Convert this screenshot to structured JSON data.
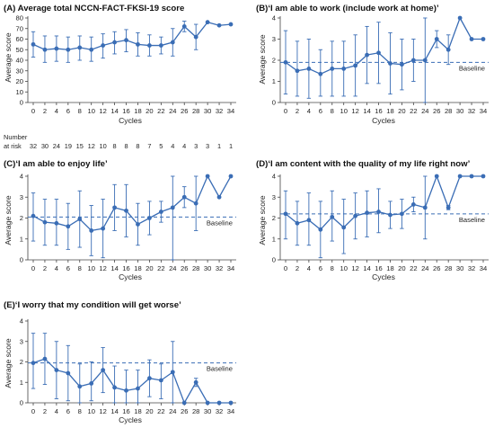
{
  "colors": {
    "series": "#3a6db5",
    "baseline": "#3a6db5",
    "axis": "#444444"
  },
  "risk_table": {
    "label_line1": "Number",
    "label_line2": "at risk",
    "values": [
      32,
      30,
      24,
      19,
      15,
      12,
      10,
      8,
      8,
      8,
      7,
      5,
      4,
      4,
      3,
      3,
      1,
      1
    ]
  },
  "chart_data": [
    {
      "type": "line",
      "title": "(A) Average total NCCN-FACT-FKSI-19 score",
      "xlabel": "Cycles",
      "ylabel": "Average score",
      "x": [
        0,
        2,
        4,
        6,
        8,
        10,
        12,
        14,
        16,
        18,
        20,
        22,
        24,
        26,
        28,
        30,
        32,
        34
      ],
      "xticks": [
        0,
        2,
        4,
        6,
        8,
        10,
        12,
        14,
        16,
        18,
        20,
        22,
        24,
        26,
        28,
        30,
        32,
        34
      ],
      "ylim": [
        0,
        80
      ],
      "yticks": [
        0,
        10,
        20,
        30,
        40,
        50,
        60,
        70,
        80
      ],
      "values": [
        55,
        50,
        51,
        50,
        52,
        50,
        54,
        57,
        59,
        55,
        54,
        54,
        57,
        72,
        62,
        76,
        73,
        74
      ],
      "err_low": [
        43,
        38,
        39,
        38,
        40,
        39,
        42,
        46,
        48,
        44,
        44,
        46,
        44,
        67,
        50,
        null,
        null,
        null
      ],
      "err_high": [
        67,
        63,
        63,
        62,
        63,
        62,
        65,
        67,
        69,
        66,
        64,
        62,
        70,
        77,
        74,
        null,
        null,
        null
      ]
    },
    {
      "type": "line",
      "title": "(B)‘I am able to work (include work at home)’",
      "xlabel": "Cycles",
      "ylabel": "Average score",
      "x": [
        0,
        2,
        4,
        6,
        8,
        10,
        12,
        14,
        16,
        18,
        20,
        22,
        24,
        26,
        28,
        30,
        32,
        34
      ],
      "xticks": [
        0,
        2,
        4,
        6,
        8,
        10,
        12,
        14,
        16,
        18,
        20,
        22,
        24,
        26,
        28,
        30,
        32,
        34
      ],
      "ylim": [
        0,
        4
      ],
      "yticks": [
        0,
        1,
        2,
        3,
        4
      ],
      "values": [
        1.9,
        1.5,
        1.6,
        1.35,
        1.6,
        1.6,
        1.75,
        2.25,
        2.35,
        1.85,
        1.8,
        2.0,
        2.0,
        3.0,
        2.5,
        4.0,
        3.0,
        3.0
      ],
      "err_low": [
        0.4,
        0.3,
        0.2,
        0.3,
        0.3,
        0.3,
        0.3,
        0.9,
        0.9,
        0.4,
        0.6,
        1.0,
        0.0,
        2.6,
        1.8,
        null,
        null,
        null
      ],
      "err_high": [
        3.4,
        2.9,
        3.0,
        2.5,
        2.9,
        2.9,
        3.2,
        3.6,
        3.8,
        3.3,
        3.0,
        3.0,
        4.0,
        3.4,
        3.2,
        null,
        null,
        null
      ],
      "baseline": 1.9,
      "baseline_label": "Baseline"
    },
    {
      "type": "line",
      "title": "(C)‘I am able to enjoy life’",
      "xlabel": "Cycles",
      "ylabel": "Average score",
      "x": [
        0,
        2,
        4,
        6,
        8,
        10,
        12,
        14,
        16,
        18,
        20,
        22,
        24,
        26,
        28,
        30,
        32,
        34
      ],
      "xticks": [
        0,
        2,
        4,
        6,
        8,
        10,
        12,
        14,
        16,
        18,
        20,
        22,
        24,
        26,
        28,
        30,
        32,
        34
      ],
      "ylim": [
        0,
        4
      ],
      "yticks": [
        0,
        1,
        2,
        3,
        4
      ],
      "values": [
        2.1,
        1.8,
        1.75,
        1.6,
        1.95,
        1.4,
        1.5,
        2.5,
        2.35,
        1.7,
        2.0,
        2.3,
        2.5,
        3.0,
        2.7,
        4.0,
        3.0,
        4.0
      ],
      "err_low": [
        0.9,
        0.7,
        0.7,
        0.5,
        0.6,
        0.2,
        0.1,
        1.4,
        1.1,
        0.7,
        1.2,
        1.8,
        0.0,
        2.5,
        1.4,
        null,
        null,
        null
      ],
      "err_high": [
        3.2,
        2.9,
        2.9,
        2.7,
        3.3,
        2.6,
        2.9,
        3.6,
        3.6,
        2.7,
        2.8,
        2.8,
        4.0,
        3.5,
        4.0,
        null,
        null,
        null
      ],
      "baseline": 2.05,
      "baseline_label": "Baseline"
    },
    {
      "type": "line",
      "title": "(D)‘I am content with the quality of my life right now’",
      "xlabel": "Cycles",
      "ylabel": "Average score",
      "x": [
        0,
        2,
        4,
        6,
        8,
        10,
        12,
        14,
        16,
        18,
        20,
        22,
        24,
        26,
        28,
        30,
        32,
        34
      ],
      "xticks": [
        0,
        2,
        4,
        6,
        8,
        10,
        12,
        14,
        16,
        18,
        20,
        22,
        24,
        26,
        28,
        30,
        32,
        34
      ],
      "ylim": [
        0,
        4
      ],
      "yticks": [
        0,
        1,
        2,
        3,
        4
      ],
      "values": [
        2.2,
        1.75,
        1.9,
        1.45,
        2.05,
        1.55,
        2.1,
        2.25,
        2.3,
        2.15,
        2.2,
        2.65,
        2.5,
        4.0,
        2.5,
        4.0,
        4.0,
        4.0
      ],
      "err_low": [
        1.0,
        0.7,
        0.7,
        0.1,
        0.9,
        0.3,
        1.0,
        1.1,
        1.3,
        1.5,
        1.5,
        2.3,
        1.0,
        null,
        2.4,
        null,
        null,
        null
      ],
      "err_high": [
        3.3,
        2.8,
        3.2,
        2.8,
        3.3,
        2.9,
        3.2,
        3.3,
        3.4,
        2.8,
        2.9,
        3.0,
        4.0,
        null,
        2.6,
        null,
        null,
        null
      ],
      "baseline": 2.2,
      "baseline_label": "Baseline"
    },
    {
      "type": "line",
      "title": "(E)‘I worry that my condition will get worse’",
      "xlabel": "Cycles",
      "ylabel": "Average score",
      "x": [
        0,
        2,
        4,
        6,
        8,
        10,
        12,
        14,
        16,
        18,
        20,
        22,
        24,
        26,
        28,
        30,
        32,
        34
      ],
      "xticks": [
        0,
        2,
        4,
        6,
        8,
        10,
        12,
        14,
        16,
        18,
        20,
        22,
        24,
        26,
        28,
        30,
        32,
        34
      ],
      "ylim": [
        0,
        4
      ],
      "yticks": [
        0,
        1,
        2,
        3,
        4
      ],
      "values": [
        1.95,
        2.15,
        1.6,
        1.45,
        0.8,
        0.95,
        1.6,
        0.75,
        0.6,
        0.7,
        1.2,
        1.1,
        1.5,
        0.0,
        1.0,
        0.0,
        0.0,
        0.0
      ],
      "err_low": [
        0.7,
        0.9,
        0.2,
        0.1,
        0.0,
        0.1,
        0.5,
        0.0,
        0.0,
        0.0,
        0.3,
        0.2,
        0.0,
        null,
        0.8,
        null,
        null,
        null
      ],
      "err_high": [
        3.4,
        3.4,
        3.0,
        2.8,
        1.9,
        2.0,
        2.7,
        1.8,
        1.6,
        1.6,
        2.1,
        1.9,
        3.0,
        null,
        1.2,
        null,
        null,
        null
      ],
      "baseline": 1.95,
      "baseline_label": "Baseline"
    }
  ]
}
